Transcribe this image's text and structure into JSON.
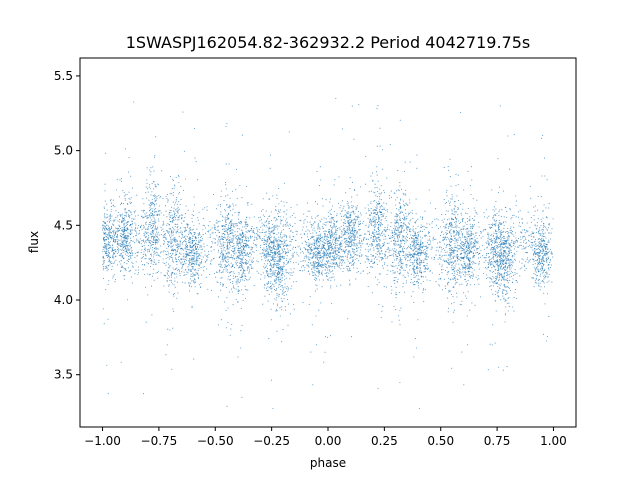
{
  "chart_data": {
    "type": "scatter",
    "title": "1SWASPJ162054.82-362932.2 Period 4042719.75s",
    "xlabel": "phase",
    "ylabel": "flux",
    "xlim": [
      -1.1,
      1.1
    ],
    "ylim": [
      3.15,
      5.62
    ],
    "x_ticks": [
      -1.0,
      -0.75,
      -0.5,
      -0.25,
      0.0,
      0.25,
      0.5,
      0.75,
      1.0
    ],
    "x_tick_labels": [
      "−1.00",
      "−0.75",
      "−0.50",
      "−0.25",
      "0.00",
      "0.25",
      "0.50",
      "0.75",
      "1.00"
    ],
    "y_ticks": [
      3.5,
      4.0,
      4.5,
      5.0,
      5.5
    ],
    "y_tick_labels": [
      "3.5",
      "4.0",
      "4.5",
      "5.0",
      "5.5"
    ],
    "grid": false,
    "legend": "none",
    "marker_color": "#1f77b4",
    "phase_range": [
      -1.0,
      1.0
    ],
    "flux_median": 4.38,
    "flux_core_spread": 0.12,
    "flux_outlier_range": [
      3.25,
      5.42
    ],
    "clusters": [
      {
        "phase_center": -0.98,
        "flux_mean": 4.4,
        "flux_spread": 0.1
      },
      {
        "phase_center": -0.9,
        "flux_mean": 4.45,
        "flux_spread": 0.12
      },
      {
        "phase_center": -0.78,
        "flux_mean": 4.5,
        "flux_spread": 0.15
      },
      {
        "phase_center": -0.68,
        "flux_mean": 4.4,
        "flux_spread": 0.18
      },
      {
        "phase_center": -0.6,
        "flux_mean": 4.3,
        "flux_spread": 0.1
      },
      {
        "phase_center": -0.45,
        "flux_mean": 4.38,
        "flux_spread": 0.17
      },
      {
        "phase_center": -0.38,
        "flux_mean": 4.3,
        "flux_spread": 0.12
      },
      {
        "phase_center": -0.25,
        "flux_mean": 4.3,
        "flux_spread": 0.12
      },
      {
        "phase_center": -0.21,
        "flux_mean": 4.25,
        "flux_spread": 0.15
      },
      {
        "phase_center": -0.05,
        "flux_mean": 4.3,
        "flux_spread": 0.1
      },
      {
        "phase_center": 0.02,
        "flux_mean": 4.35,
        "flux_spread": 0.1
      },
      {
        "phase_center": 0.1,
        "flux_mean": 4.45,
        "flux_spread": 0.12
      },
      {
        "phase_center": 0.22,
        "flux_mean": 4.5,
        "flux_spread": 0.15
      },
      {
        "phase_center": 0.32,
        "flux_mean": 4.4,
        "flux_spread": 0.18
      },
      {
        "phase_center": 0.4,
        "flux_mean": 4.3,
        "flux_spread": 0.1
      },
      {
        "phase_center": 0.55,
        "flux_mean": 4.38,
        "flux_spread": 0.17
      },
      {
        "phase_center": 0.62,
        "flux_mean": 4.3,
        "flux_spread": 0.12
      },
      {
        "phase_center": 0.75,
        "flux_mean": 4.3,
        "flux_spread": 0.12
      },
      {
        "phase_center": 0.79,
        "flux_mean": 4.25,
        "flux_spread": 0.15
      },
      {
        "phase_center": 0.95,
        "flux_mean": 4.3,
        "flux_spread": 0.1
      }
    ]
  }
}
